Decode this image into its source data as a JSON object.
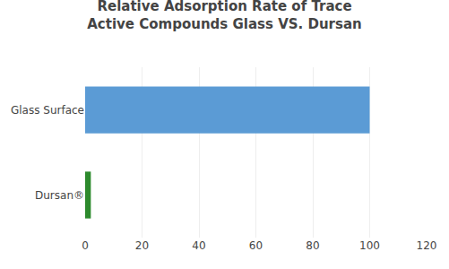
{
  "chart_data": {
    "type": "bar",
    "orientation": "horizontal",
    "title": "Relative Adsorption Rate of Trace\nActive Compounds Glass VS. Dursan",
    "categories": [
      "Dursan®",
      "Glass Surface"
    ],
    "values": [
      2,
      100
    ],
    "colors": [
      "#2d8a2d",
      "#5b9bd5"
    ],
    "xlim": [
      0,
      120
    ],
    "xticks": [
      0,
      20,
      40,
      60,
      80,
      100,
      120
    ],
    "grid": true
  }
}
